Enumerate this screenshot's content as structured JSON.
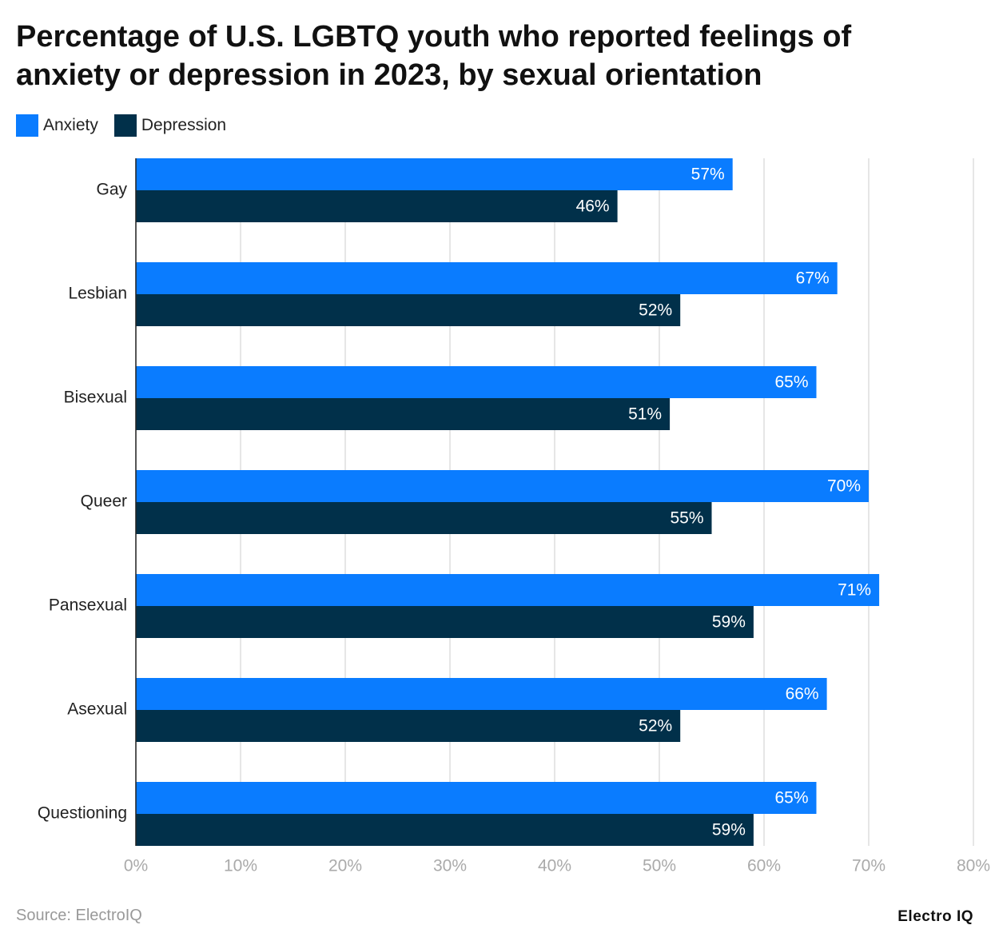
{
  "chart_data": {
    "type": "bar",
    "orientation": "horizontal",
    "title": "Percentage of U.S. LGBTQ youth who reported feelings of anxiety or depression in 2023, by sexual orientation",
    "categories": [
      "Gay",
      "Lesbian",
      "Bisexual",
      "Queer",
      "Pansexual",
      "Asexual",
      "Questioning"
    ],
    "series": [
      {
        "name": "Anxiety",
        "color": "#0a7cff",
        "values": [
          57,
          67,
          65,
          70,
          71,
          66,
          65
        ],
        "value_labels": [
          "57%",
          "67%",
          "65%",
          "70%",
          "71%",
          "66%",
          "65%"
        ]
      },
      {
        "name": "Depression",
        "color": "#01304a",
        "values": [
          46,
          52,
          51,
          55,
          59,
          52,
          59
        ],
        "value_labels": [
          "46%",
          "52%",
          "51%",
          "55%",
          "59%",
          "52%",
          "59%"
        ]
      }
    ],
    "xlim": [
      0,
      80
    ],
    "xticks": [
      {
        "value": 0,
        "label": "0%"
      },
      {
        "value": 10,
        "label": "10%"
      },
      {
        "value": 20,
        "label": "20%"
      },
      {
        "value": 30,
        "label": "30%"
      },
      {
        "value": 40,
        "label": "40%"
      },
      {
        "value": 50,
        "label": "50%"
      },
      {
        "value": 60,
        "label": "60%"
      },
      {
        "value": 70,
        "label": "70%"
      },
      {
        "value": 80,
        "label": "80%"
      }
    ],
    "grid": true,
    "legend": "top-left",
    "source": "Source: ElectroIQ",
    "brand": "Electro IQ"
  }
}
